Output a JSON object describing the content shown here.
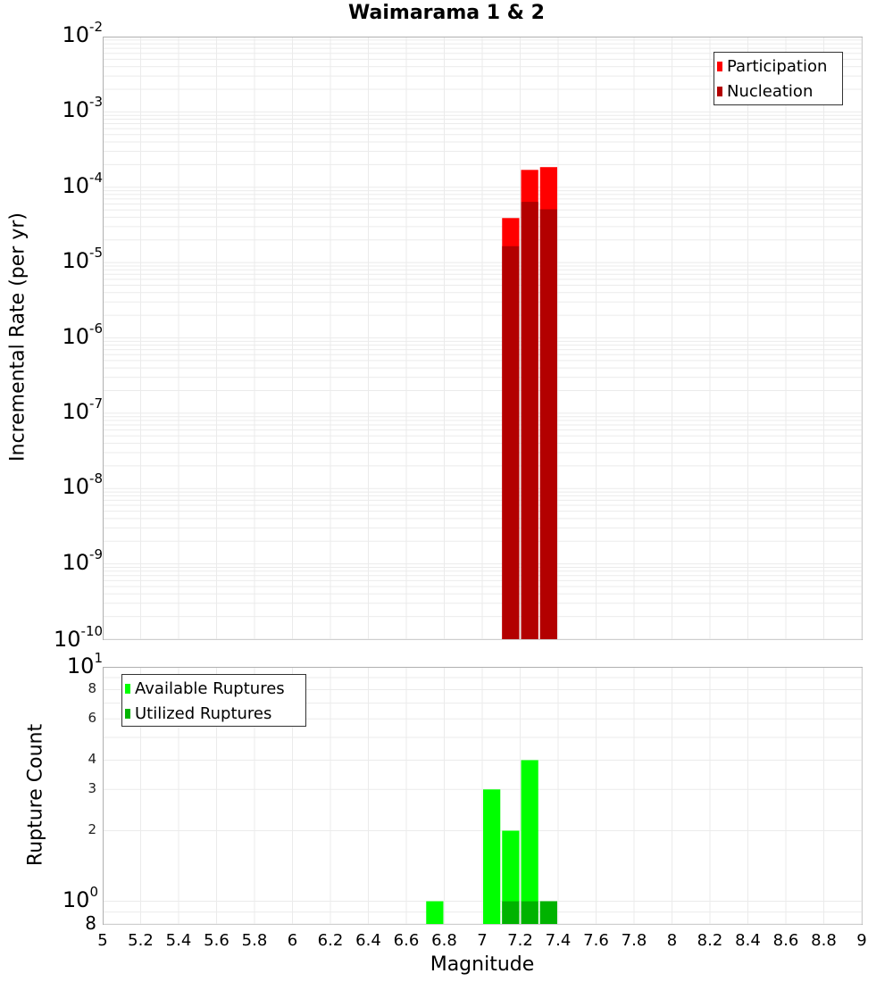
{
  "chart_data": [
    {
      "type": "bar",
      "title": "Waimarama 1 & 2",
      "xlabel": "Magnitude",
      "ylabel": "Incremental Rate (per yr)",
      "yscale": "log",
      "ylim": [
        1e-10,
        0.01
      ],
      "xlim": [
        5,
        9
      ],
      "bin_width": 0.1,
      "grid": true,
      "legend_position": "top-right",
      "y_ticks": [
        "10^-2",
        "10^-3",
        "10^-4",
        "10^-5",
        "10^-6",
        "10^-7",
        "10^-8",
        "10^-9",
        "10^-10"
      ],
      "x": [
        7.15,
        7.25,
        7.35
      ],
      "series": [
        {
          "name": "Participation",
          "color": "#ff0000",
          "values": [
            3.9e-05,
            0.00017,
            0.000185
          ]
        },
        {
          "name": "Nucleation",
          "color": "#b30000",
          "values": [
            1.65e-05,
            6.4e-05,
            5.1e-05
          ]
        }
      ]
    },
    {
      "type": "bar",
      "title": "",
      "xlabel": "Magnitude",
      "ylabel": "Rupture Count",
      "yscale": "log",
      "ylim": [
        0.8,
        10
      ],
      "xlim": [
        5,
        9
      ],
      "bin_width": 0.1,
      "grid": true,
      "legend_position": "top-left",
      "y_ticks": [
        "10^1",
        "8",
        "6",
        "4",
        "3",
        "2",
        "10^0",
        "8"
      ],
      "x_ticks": [
        "5",
        "5.2",
        "5.4",
        "5.6",
        "5.8",
        "6",
        "6.2",
        "6.4",
        "6.6",
        "6.8",
        "7",
        "7.2",
        "7.4",
        "7.6",
        "7.8",
        "8",
        "8.2",
        "8.4",
        "8.6",
        "8.8",
        "9"
      ],
      "x": [
        6.75,
        7.05,
        7.15,
        7.25,
        7.35
      ],
      "series": [
        {
          "name": "Available Ruptures",
          "color": "#00ff00",
          "values": [
            1,
            3,
            2,
            4,
            1
          ]
        },
        {
          "name": "Utilized Ruptures",
          "color": "#00b300",
          "values": [
            0,
            0,
            1,
            1,
            1
          ]
        }
      ]
    }
  ],
  "title": "Waimarama 1 & 2",
  "top": {
    "ylabel": "Incremental Rate (per yr)",
    "yticks": [
      {
        "base": "10",
        "exp": "-2"
      },
      {
        "base": "10",
        "exp": "-3"
      },
      {
        "base": "10",
        "exp": "-4"
      },
      {
        "base": "10",
        "exp": "-5"
      },
      {
        "base": "10",
        "exp": "-6"
      },
      {
        "base": "10",
        "exp": "-7"
      },
      {
        "base": "10",
        "exp": "-8"
      },
      {
        "base": "10",
        "exp": "-9"
      },
      {
        "base": "10",
        "exp": "-10"
      }
    ],
    "legend": [
      "Participation",
      "Nucleation"
    ]
  },
  "bottom": {
    "ylabel": "Rupture Count",
    "yticks_major": [
      {
        "base": "10",
        "exp": "1"
      },
      {
        "base": "10",
        "exp": "0"
      }
    ],
    "yticks_minor": [
      "8",
      "6",
      "4",
      "3",
      "2"
    ],
    "ytick_bottom": "8",
    "legend": [
      "Available Ruptures",
      "Utilized Ruptures"
    ]
  },
  "xaxis": {
    "label": "Magnitude",
    "ticks": [
      "5",
      "5.2",
      "5.4",
      "5.6",
      "5.8",
      "6",
      "6.2",
      "6.4",
      "6.6",
      "6.8",
      "7",
      "7.2",
      "7.4",
      "7.6",
      "7.8",
      "8",
      "8.2",
      "8.4",
      "8.6",
      "8.8",
      "9"
    ]
  },
  "colors": {
    "participation": "#ff0000",
    "nucleation": "#b30000",
    "available": "#00ff00",
    "utilized": "#00b300",
    "grid": "#ebebeb",
    "frame": "#b0b0b0"
  }
}
